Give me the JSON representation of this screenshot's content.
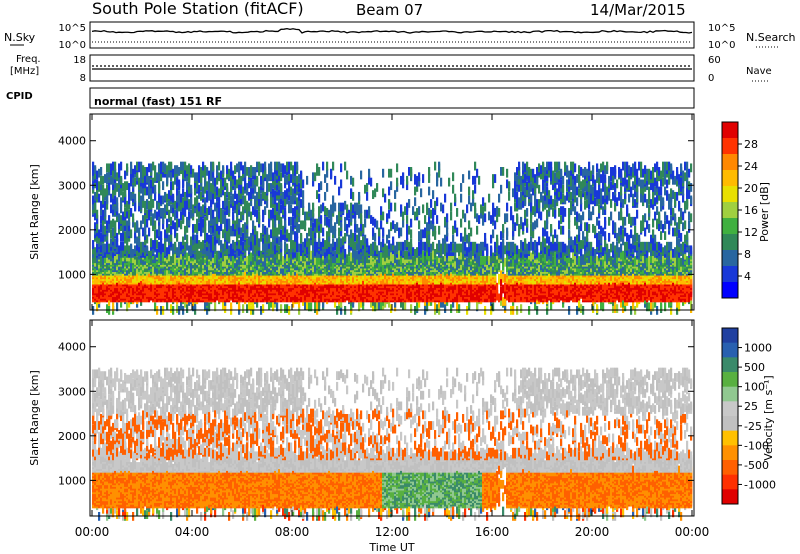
{
  "header": {
    "station": "South Pole Station (fitACF)",
    "beam": "Beam 07",
    "date": "14/Mar/2015"
  },
  "params": {
    "nsky_label": "N.Sky",
    "nsky_ticks": [
      "10^5",
      "10^0"
    ],
    "nsearch_label": "N.Search",
    "freq_label_1": "Freq.",
    "freq_label_2": "[MHz]",
    "freq_ticks": [
      "18",
      "8"
    ],
    "nave_label": "Nave",
    "nave_ticks": [
      "60",
      "0"
    ],
    "cpid_label": "CPID",
    "cpid_value": "normal (fast) 151 RF"
  },
  "chart_data": [
    {
      "type": "heatmap",
      "name": "power",
      "ylabel": "Slant Range [km]",
      "xlabel": "",
      "ylim": [
        200,
        4600
      ],
      "yticks": [
        1000,
        2000,
        3000,
        4000
      ],
      "colorbar": {
        "label": "Power [dB]",
        "ticks": [
          "28",
          "24",
          "20",
          "16",
          "12",
          "8",
          "4"
        ],
        "colors": [
          "#e00000",
          "#ff3300",
          "#ff8800",
          "#ffbb00",
          "#e8e000",
          "#a0d040",
          "#40b040",
          "#308858",
          "#2866a0",
          "#1838d8",
          "#0000ff"
        ]
      }
    },
    {
      "type": "heatmap",
      "name": "velocity",
      "ylabel": "Slant Range [km]",
      "xlabel": "Time UT",
      "ylim": [
        200,
        4600
      ],
      "yticks": [
        1000,
        2000,
        3000,
        4000
      ],
      "xticks": [
        "00:00",
        "04:00",
        "08:00",
        "12:00",
        "16:00",
        "20:00",
        "00:00"
      ],
      "colorbar": {
        "label": "Velocity [m s⁻¹]",
        "ticks": [
          "1000",
          "500",
          "100",
          "25",
          "-25",
          "-100",
          "-500",
          "-1000"
        ],
        "colors": [
          "#2040a0",
          "#2860b0",
          "#3a8a6a",
          "#58b040",
          "#90c890",
          "#c8c8c8",
          "#c0c0c0",
          "#ffc000",
          "#ff9000",
          "#ff6000",
          "#ff3000",
          "#e00000"
        ]
      }
    }
  ]
}
